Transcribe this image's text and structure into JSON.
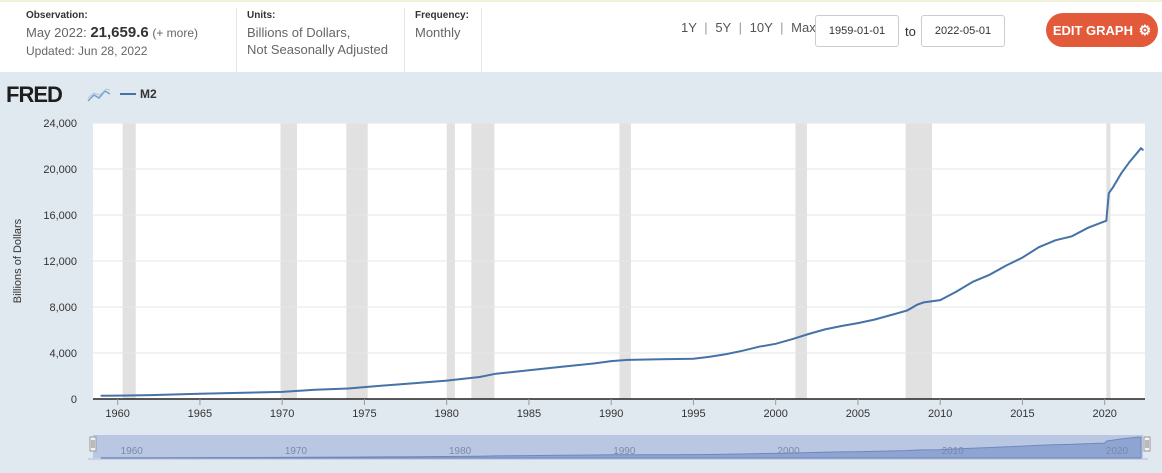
{
  "header": {
    "observation_label": "Observation:",
    "observation_period": "May 2022:",
    "observation_value": "21,659.6",
    "observation_more": "(+ more)",
    "updated": "Updated: Jun 28, 2022",
    "units_label": "Units:",
    "units_line1": "Billions of Dollars,",
    "units_line2": "Not Seasonally Adjusted",
    "frequency_label": "Frequency:",
    "frequency_value": "Monthly",
    "range_1y": "1Y",
    "range_5y": "5Y",
    "range_10y": "10Y",
    "range_max": "Max",
    "range_sep": "|",
    "start_date": "1959-01-01",
    "to_label": "to",
    "end_date": "2022-05-01",
    "edit_button": "EDIT GRAPH",
    "edit_icon": "gear-icon"
  },
  "logo": {
    "text": "FRED"
  },
  "legend": {
    "series_name": "M2"
  },
  "colors": {
    "line": "#4572a7",
    "recession": "#e1e1e1",
    "button": "#e25a3a",
    "navigator_fill": "#b9c7e2"
  },
  "chart_data": {
    "type": "line",
    "ylabel": "Billions of Dollars",
    "xlim": [
      1958.5,
      2022.45
    ],
    "ylim": [
      0,
      24000
    ],
    "y_ticks": [
      0,
      4000,
      8000,
      12000,
      16000,
      20000,
      24000
    ],
    "y_tick_labels": [
      "0",
      "4,000",
      "8,000",
      "12,000",
      "16,000",
      "20,000",
      "24,000"
    ],
    "x_ticks": [
      1960,
      1965,
      1970,
      1975,
      1980,
      1985,
      1990,
      1995,
      2000,
      2005,
      2010,
      2015,
      2020
    ],
    "navigator_ticks": [
      1960,
      1970,
      1980,
      1990,
      2000,
      2010,
      2020
    ],
    "recessions": [
      [
        1960.3,
        1961.1
      ],
      [
        1969.9,
        1970.9
      ],
      [
        1973.9,
        1975.2
      ],
      [
        1980.0,
        1980.5
      ],
      [
        1981.5,
        1982.9
      ],
      [
        1990.5,
        1991.2
      ],
      [
        2001.2,
        2001.9
      ],
      [
        2007.9,
        2009.5
      ],
      [
        2020.1,
        2020.35
      ]
    ],
    "series": [
      {
        "name": "M2",
        "x": [
          1959.0,
          1960.0,
          1962.0,
          1965.0,
          1968.0,
          1970.0,
          1972.0,
          1974.0,
          1976.0,
          1978.0,
          1980.0,
          1982.0,
          1983.0,
          1985.0,
          1987.0,
          1989.0,
          1990.0,
          1991.0,
          1993.0,
          1995.0,
          1996.0,
          1997.0,
          1998.0,
          1999.0,
          2000.0,
          2001.0,
          2002.0,
          2003.0,
          2004.0,
          2005.0,
          2006.0,
          2007.0,
          2008.0,
          2008.6,
          2009.0,
          2010.0,
          2011.0,
          2012.0,
          2013.0,
          2014.0,
          2015.0,
          2016.0,
          2017.0,
          2018.0,
          2019.0,
          2019.9,
          2020.1,
          2020.25,
          2020.5,
          2021.0,
          2021.5,
          2022.0,
          2022.2,
          2022.33
        ],
        "values": [
          290,
          300,
          340,
          460,
          560,
          620,
          800,
          910,
          1150,
          1370,
          1600,
          1910,
          2200,
          2500,
          2800,
          3100,
          3300,
          3400,
          3450,
          3500,
          3680,
          3900,
          4200,
          4550,
          4800,
          5200,
          5650,
          6050,
          6350,
          6600,
          6900,
          7300,
          7700,
          8200,
          8400,
          8600,
          9350,
          10200,
          10800,
          11600,
          12300,
          13200,
          13800,
          14150,
          14900,
          15400,
          15500,
          17900,
          18400,
          19600,
          20600,
          21450,
          21800,
          21659.6
        ]
      }
    ]
  }
}
